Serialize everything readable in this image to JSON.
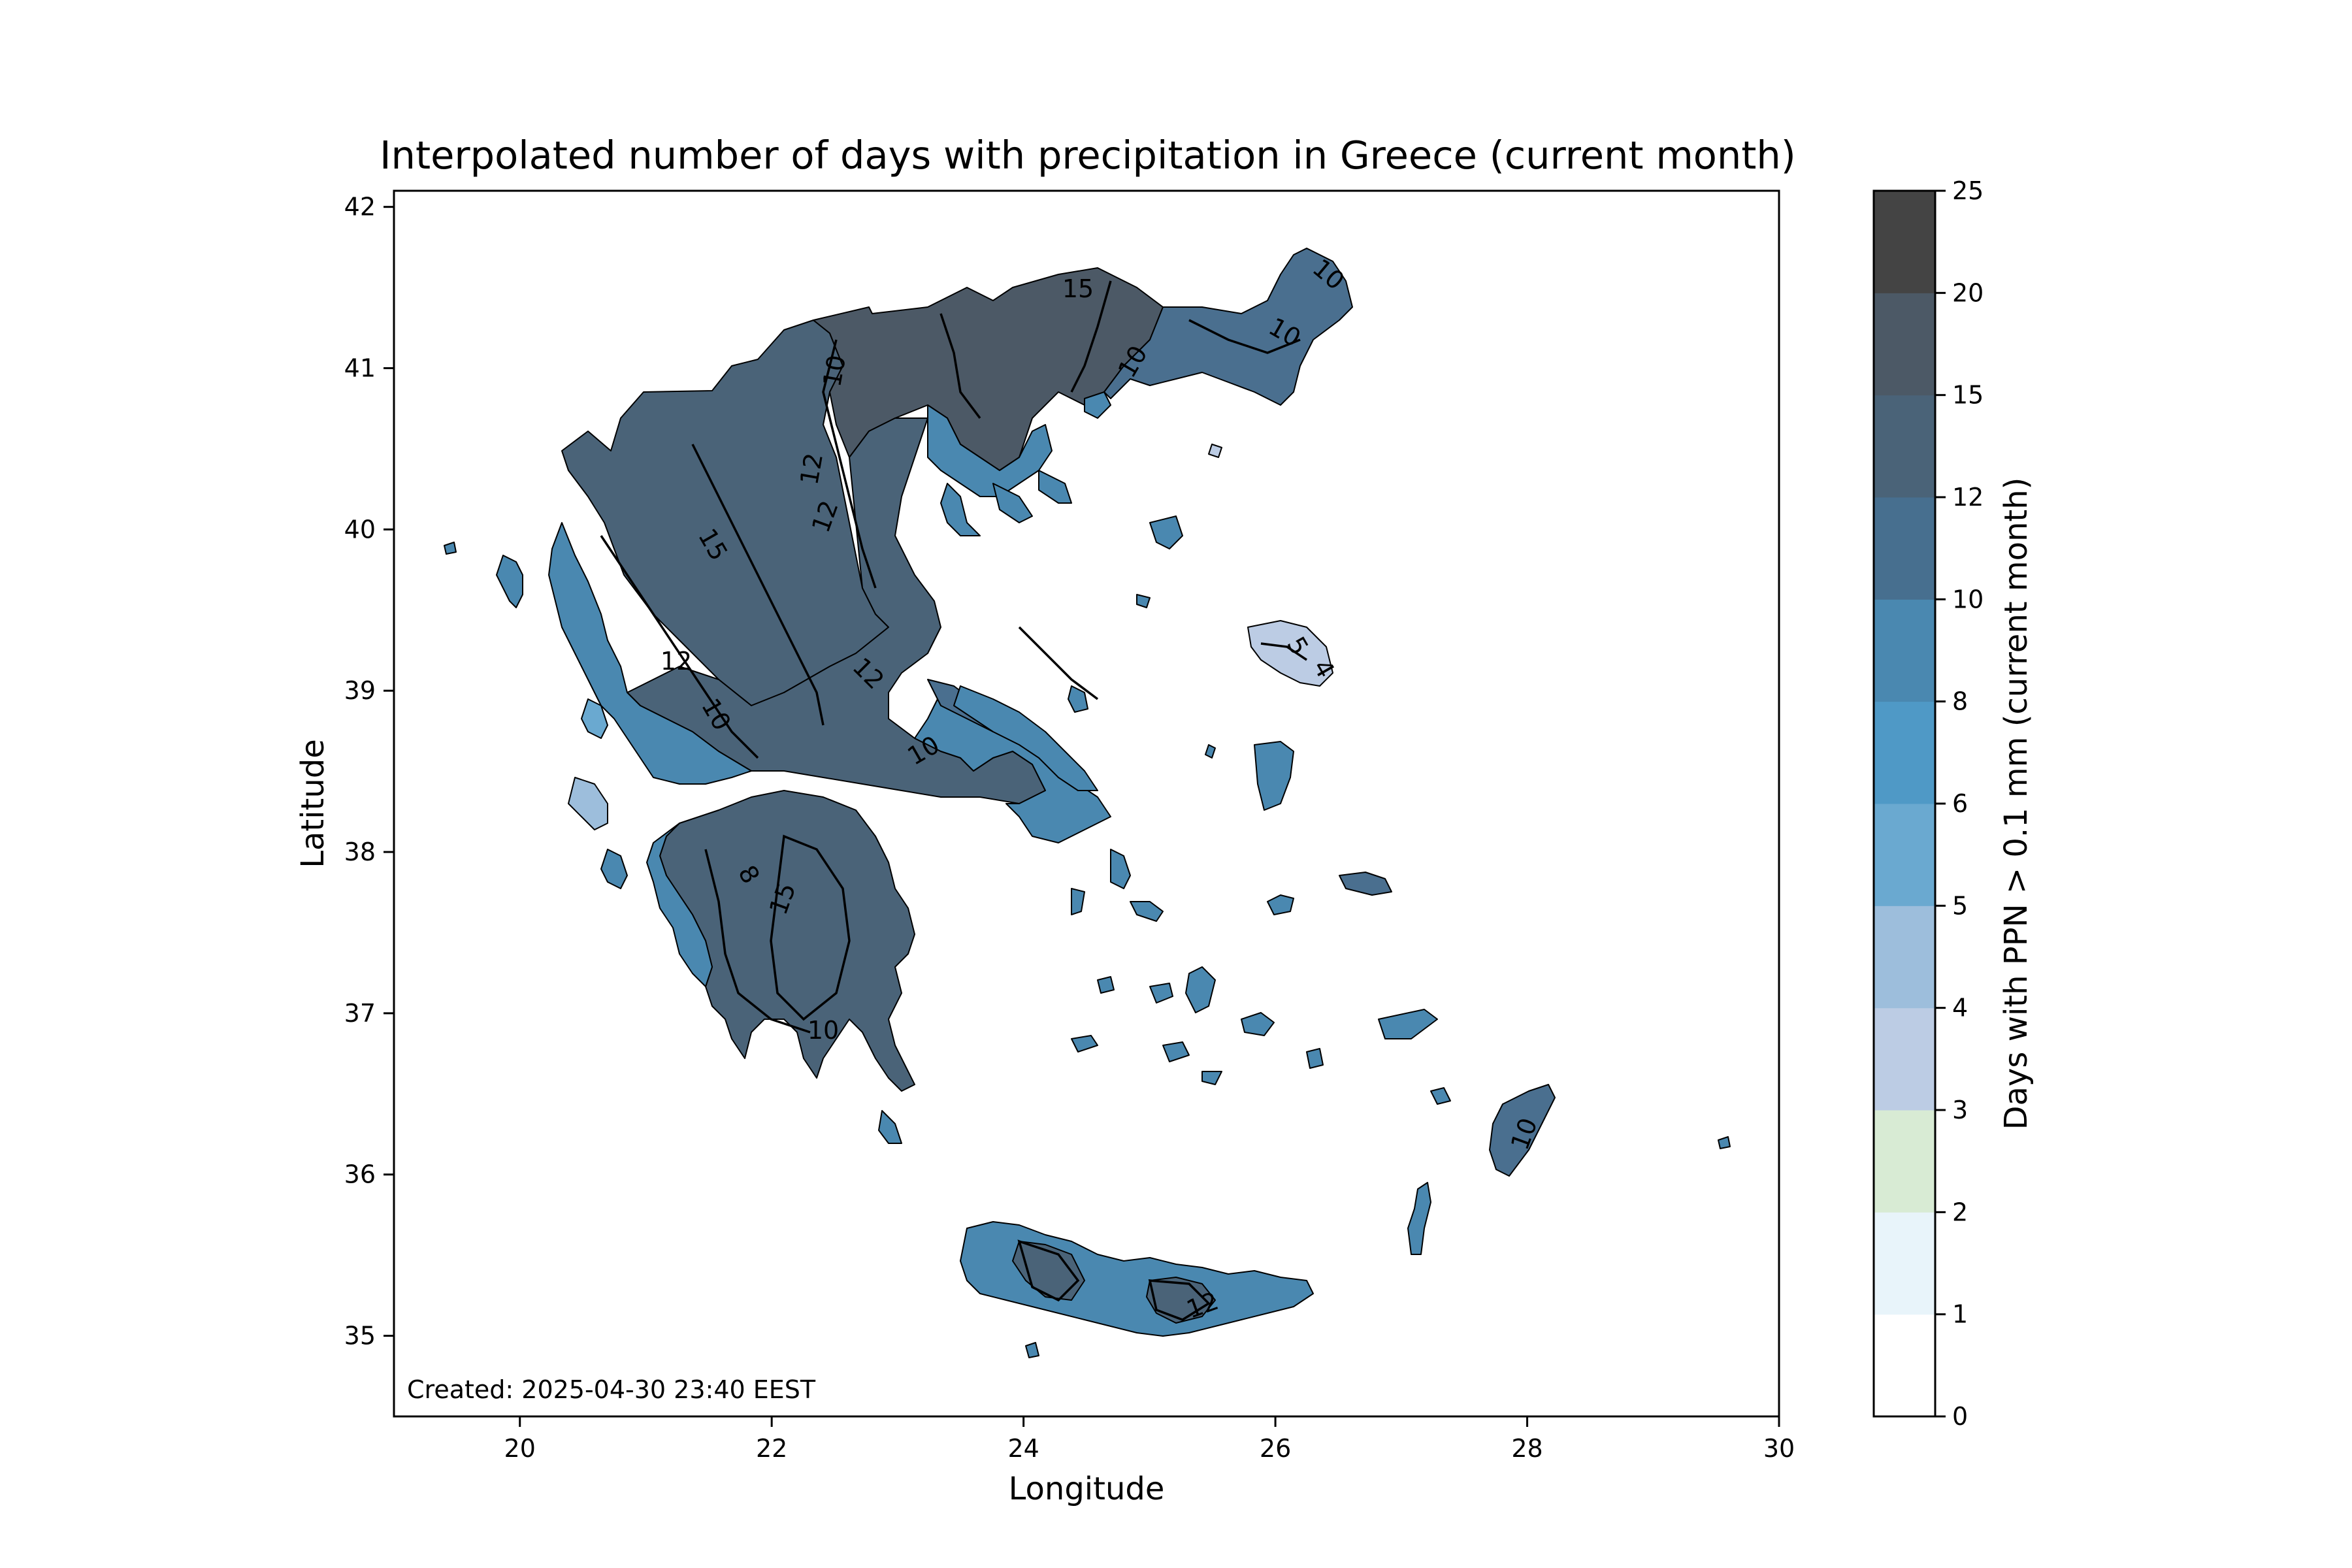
{
  "figure": {
    "title": "Interpolated number of days with precipitation in Greece (current month)",
    "xlabel": "Longitude",
    "ylabel": "Latitude",
    "created_note": "Created: 2025-04-30 23:40 EEST",
    "x_ticks": [
      "20",
      "22",
      "24",
      "26",
      "28",
      "30"
    ],
    "y_ticks": [
      "42",
      "41",
      "40",
      "39",
      "38",
      "37",
      "36",
      "35"
    ]
  },
  "colorbar": {
    "label": "Days with PPN > 0.1 mm (current month)",
    "levels": [
      "0",
      "1",
      "2",
      "3",
      "4",
      "5",
      "6",
      "8",
      "10",
      "12",
      "15",
      "20",
      "25"
    ],
    "colors": [
      "#ffffff",
      "#e8f4fa",
      "#d8ebd4",
      "#bccce4",
      "#9dbedc",
      "#6aa9d0",
      "#4f99c6",
      "#4a88b0",
      "#476f8f",
      "#4a6378",
      "#4c5966",
      "#444444"
    ]
  },
  "chart_data": {
    "type": "heatmap",
    "xlim": [
      19.0,
      30.0
    ],
    "ylim": [
      34.5,
      42.1
    ],
    "grid": false,
    "contour_labels": [
      "15",
      "10",
      "10",
      "10",
      "10",
      "12",
      "12",
      "15",
      "12",
      "10",
      "12",
      "10",
      "8",
      "15",
      "10",
      "10",
      "12",
      "5",
      "4"
    ]
  }
}
